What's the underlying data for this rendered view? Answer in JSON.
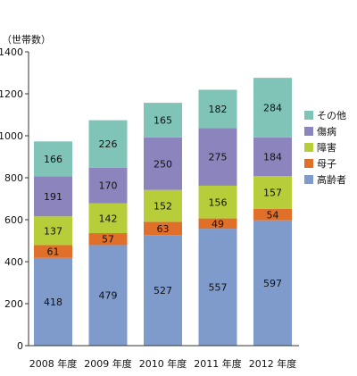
{
  "chart_data": {
    "type": "bar",
    "stacked": true,
    "unit_label": "（世帯数）",
    "categories": [
      "2008 年度",
      "2009 年度",
      "2010 年度",
      "2011 年度",
      "2012 年度"
    ],
    "series": [
      {
        "name": "高齢者",
        "color": "#7f9bcb",
        "values": [
          418,
          479,
          527,
          557,
          597
        ]
      },
      {
        "name": "母子",
        "color": "#e06f2a",
        "values": [
          61,
          57,
          63,
          49,
          54
        ]
      },
      {
        "name": "障害",
        "color": "#b8cd3a",
        "values": [
          137,
          142,
          152,
          156,
          157
        ]
      },
      {
        "name": "傷病",
        "color": "#8c84bd",
        "values": [
          191,
          170,
          250,
          275,
          184
        ]
      },
      {
        "name": "その他",
        "color": "#7fc4b7",
        "values": [
          166,
          226,
          165,
          182,
          284
        ]
      }
    ],
    "ylim": [
      0,
      1400
    ],
    "yticks": [
      0,
      200,
      400,
      600,
      800,
      1000,
      1200,
      1400
    ],
    "legend_position": "right",
    "legend_order": [
      "その他",
      "傷病",
      "障害",
      "母子",
      "高齢者"
    ],
    "grid": false
  }
}
